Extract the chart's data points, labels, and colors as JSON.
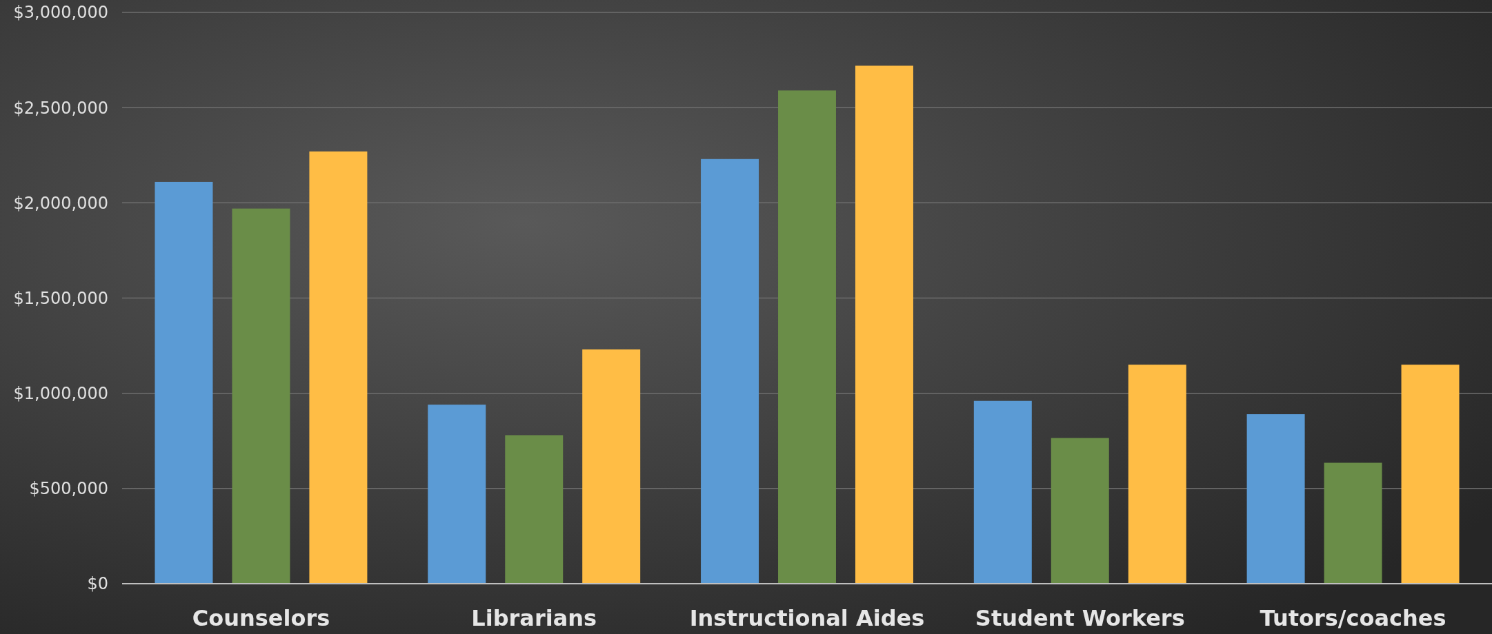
{
  "chart_data": {
    "type": "bar",
    "categories": [
      "Counselors",
      "Librarians",
      "Instructional Aides",
      "Student Workers",
      "Tutors/coaches"
    ],
    "series": [
      {
        "color": "#5b9bd5",
        "values": [
          2110000,
          940000,
          2230000,
          960000,
          890000
        ]
      },
      {
        "color": "#6a8d48",
        "values": [
          1970000,
          780000,
          2590000,
          765000,
          635000
        ]
      },
      {
        "color": "#ffbd45",
        "values": [
          2270000,
          1230000,
          2720000,
          1150000,
          1150000
        ]
      }
    ],
    "ylim": [
      0,
      3000000
    ],
    "yticks": [
      {
        "value": 0,
        "label": "$0"
      },
      {
        "value": 500000,
        "label": "$500,000"
      },
      {
        "value": 1000000,
        "label": "$1,000,000"
      },
      {
        "value": 1500000,
        "label": "$1,500,000"
      },
      {
        "value": 2000000,
        "label": "$2,000,000"
      },
      {
        "value": 2500000,
        "label": "$2,500,000"
      },
      {
        "value": 3000000,
        "label": "$3,000,000"
      }
    ],
    "grid": "y"
  }
}
